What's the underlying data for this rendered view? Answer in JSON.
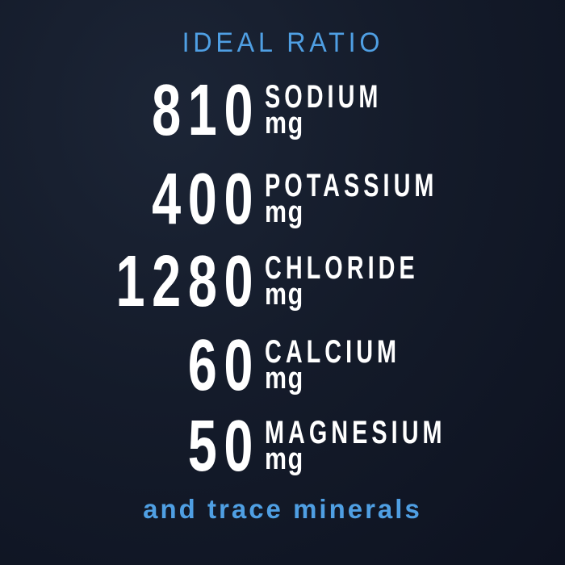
{
  "title": "IDEAL RATIO",
  "minerals": [
    {
      "amount": "810",
      "name": "SODIUM",
      "unit": "mg"
    },
    {
      "amount": "400",
      "name": "POTASSIUM",
      "unit": "mg"
    },
    {
      "amount": "1280",
      "name": "CHLORIDE",
      "unit": "mg"
    },
    {
      "amount": "60",
      "name": "CALCIUM",
      "unit": "mg"
    },
    {
      "amount": "50",
      "name": "MAGNESIUM",
      "unit": "mg"
    }
  ],
  "footer": "and trace minerals",
  "colors": {
    "background": "#141b2a",
    "accent": "#4f9fe3",
    "text": "#ffffff"
  }
}
